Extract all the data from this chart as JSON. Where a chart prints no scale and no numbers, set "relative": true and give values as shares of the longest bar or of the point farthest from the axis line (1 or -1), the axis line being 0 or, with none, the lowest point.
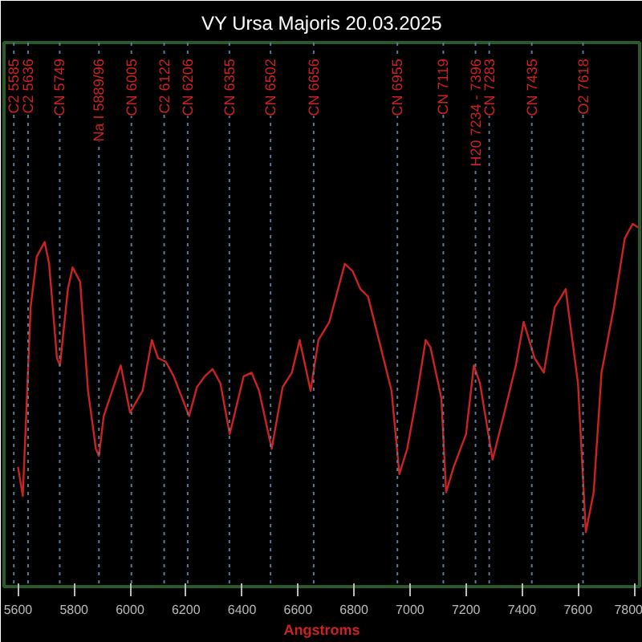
{
  "chart_data": {
    "type": "line",
    "title": "VY Ursa Majoris 20.03.2025",
    "xlabel": "Angstroms",
    "relative": true,
    "x": [
      5600,
      5617,
      5628,
      5645,
      5667,
      5695,
      5711,
      5739,
      5750,
      5778,
      5795,
      5822,
      5850,
      5878,
      5889,
      5906,
      5945,
      5967,
      6000,
      6045,
      6078,
      6100,
      6128,
      6156,
      6211,
      6239,
      6267,
      6295,
      6323,
      6356,
      6406,
      6434,
      6461,
      6506,
      6545,
      6578,
      6606,
      6645,
      6673,
      6712,
      6767,
      6795,
      6823,
      6850,
      6889,
      6934,
      6962,
      6990,
      7023,
      7056,
      7073,
      7112,
      7129,
      7156,
      7200,
      7228,
      7250,
      7295,
      7334,
      7378,
      7406,
      7445,
      7478,
      7517,
      7556,
      7600,
      7628,
      7656,
      7684,
      7728,
      7767,
      7795,
      7815
    ],
    "series": [
      {
        "color": "#cc2222",
        "values": [
          0.33,
          0.25,
          0.45,
          0.77,
          0.91,
          0.95,
          0.89,
          0.63,
          0.61,
          0.82,
          0.88,
          0.84,
          0.54,
          0.38,
          0.36,
          0.47,
          0.56,
          0.61,
          0.48,
          0.54,
          0.68,
          0.63,
          0.62,
          0.58,
          0.47,
          0.55,
          0.58,
          0.6,
          0.56,
          0.42,
          0.58,
          0.59,
          0.54,
          0.38,
          0.55,
          0.59,
          0.68,
          0.54,
          0.68,
          0.73,
          0.89,
          0.87,
          0.82,
          0.8,
          0.68,
          0.54,
          0.31,
          0.38,
          0.52,
          0.68,
          0.66,
          0.52,
          0.26,
          0.33,
          0.42,
          0.61,
          0.56,
          0.35,
          0.47,
          0.61,
          0.73,
          0.63,
          0.59,
          0.77,
          0.82,
          0.56,
          0.15,
          0.26,
          0.59,
          0.77,
          0.96,
          1.0,
          0.99
        ]
      }
    ],
    "xlim": [
      5550,
      7820
    ],
    "xticks": [
      5600,
      5800,
      6000,
      6200,
      6400,
      6600,
      6800,
      7000,
      7200,
      7400,
      7600,
      7800
    ],
    "grid": false,
    "ref_lines": [
      {
        "axis": "x",
        "value": 5585,
        "label": "C2 5585",
        "color": "#5a7a9a",
        "line_style": "dashed"
      },
      {
        "axis": "x",
        "value": 5636,
        "label": "C2 5636",
        "color": "#5a7a9a",
        "line_style": "dashed"
      },
      {
        "axis": "x",
        "value": 5749,
        "label": "CN 5749",
        "color": "#5a7a9a",
        "line_style": "dashed"
      },
      {
        "axis": "x",
        "value": 5889,
        "label": "Na I 5889/96",
        "color": "#5a7a9a",
        "line_style": "dashed"
      },
      {
        "axis": "x",
        "value": 6005,
        "label": "CN 6005",
        "color": "#5a7a9a",
        "line_style": "dashed"
      },
      {
        "axis": "x",
        "value": 6122,
        "label": "C2 6122",
        "color": "#5a7a9a",
        "line_style": "dashed"
      },
      {
        "axis": "x",
        "value": 6206,
        "label": "CN 6206",
        "color": "#5a7a9a",
        "line_style": "dashed"
      },
      {
        "axis": "x",
        "value": 6355,
        "label": "CN 6355",
        "color": "#5a7a9a",
        "line_style": "dashed"
      },
      {
        "axis": "x",
        "value": 6502,
        "label": "CN 6502",
        "color": "#5a7a9a",
        "line_style": "dashed"
      },
      {
        "axis": "x",
        "value": 6656,
        "label": "CN 6656",
        "color": "#5a7a9a",
        "line_style": "dashed"
      },
      {
        "axis": "x",
        "value": 6955,
        "label": "CN 6955",
        "color": "#5a7a9a",
        "line_style": "dashed"
      },
      {
        "axis": "x",
        "value": 7119,
        "label": "CN 7119",
        "color": "#5a7a9a",
        "line_style": "dashed"
      },
      {
        "axis": "x",
        "value": 7234,
        "label": "H20 7234 - 7396",
        "color": "#5a7a9a",
        "line_style": "dashed"
      },
      {
        "axis": "x",
        "value": 7283,
        "label": "CN 7283",
        "color": "#5a7a9a",
        "line_style": "dashed"
      },
      {
        "axis": "x",
        "value": 7435,
        "label": "CN 7435",
        "color": "#5a7a9a",
        "line_style": "dashed"
      },
      {
        "axis": "x",
        "value": 7618,
        "label": "O2 7618",
        "color": "#5a7a9a",
        "line_style": "dashed"
      }
    ]
  }
}
